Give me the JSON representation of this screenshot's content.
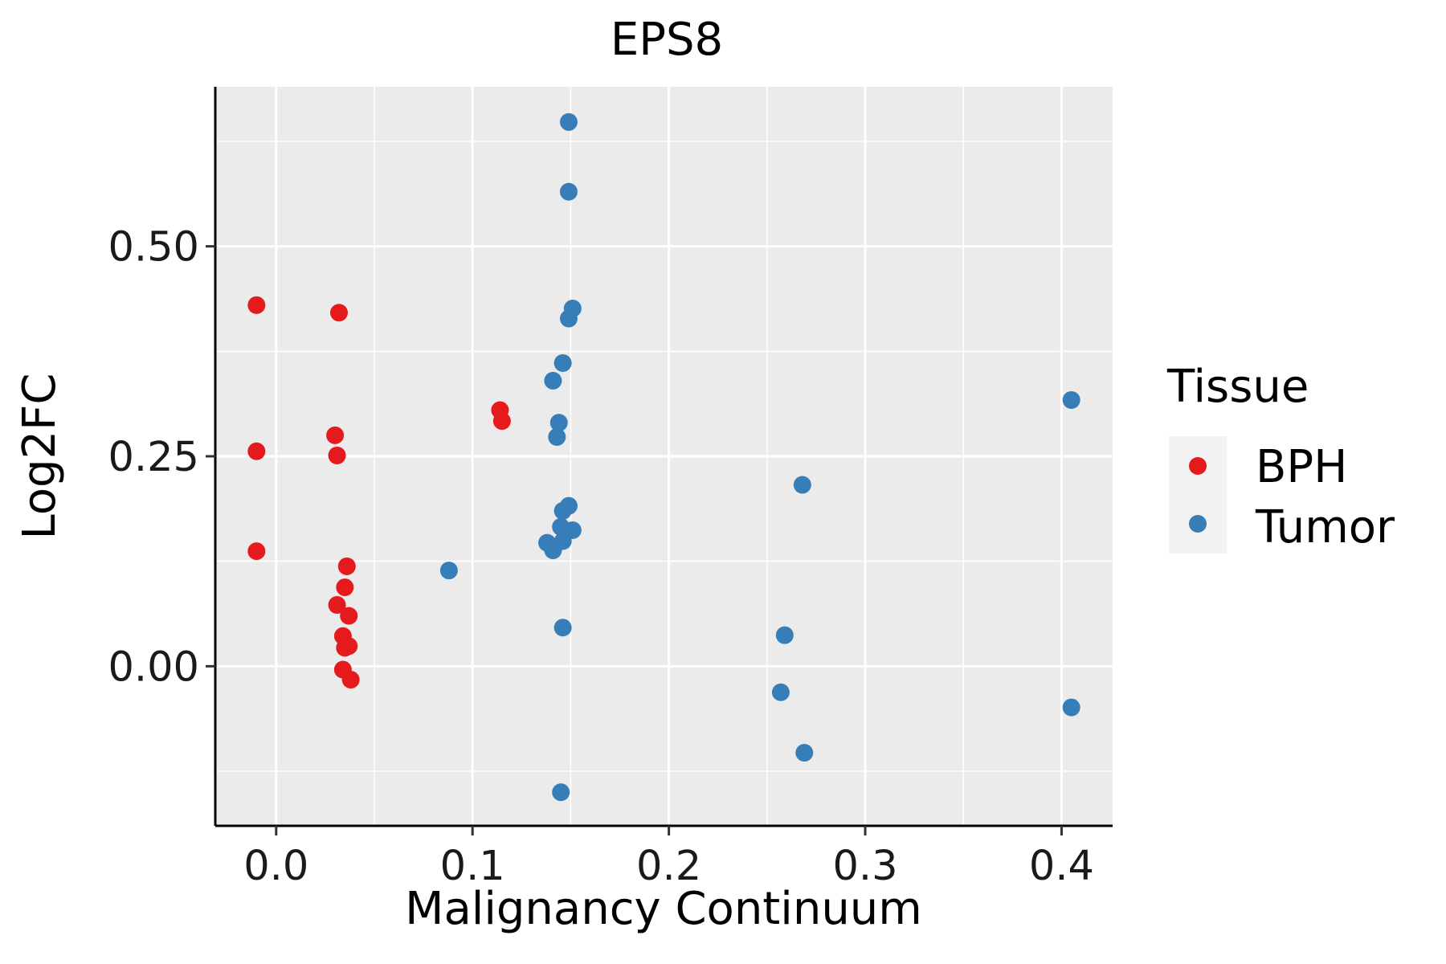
{
  "chart_data": {
    "type": "scatter",
    "title": "EPS8",
    "xlabel": "Malignancy Continuum",
    "ylabel": "Log2FC",
    "xlim": [
      -0.031,
      0.426
    ],
    "ylim": [
      -0.19,
      0.69
    ],
    "x_ticks": [
      {
        "value": 0.0,
        "label": "0.0"
      },
      {
        "value": 0.1,
        "label": "0.1"
      },
      {
        "value": 0.2,
        "label": "0.2"
      },
      {
        "value": 0.3,
        "label": "0.3"
      },
      {
        "value": 0.4,
        "label": "0.4"
      }
    ],
    "x_minor": [
      0.05,
      0.15,
      0.25,
      0.35
    ],
    "y_ticks": [
      {
        "value": 0.0,
        "label": "0.00"
      },
      {
        "value": 0.25,
        "label": "0.25"
      },
      {
        "value": 0.5,
        "label": "0.50"
      }
    ],
    "y_minor": [
      -0.125,
      0.125,
      0.375,
      0.625
    ],
    "grid": true,
    "legend": {
      "title": "Tissue",
      "position": "right"
    },
    "series": [
      {
        "name": "BPH",
        "color": "#E41A1C",
        "points": [
          [
            -0.01,
            0.43
          ],
          [
            -0.01,
            0.256
          ],
          [
            -0.01,
            0.137
          ],
          [
            0.032,
            0.421
          ],
          [
            0.03,
            0.275
          ],
          [
            0.031,
            0.251
          ],
          [
            0.036,
            0.119
          ],
          [
            0.035,
            0.094
          ],
          [
            0.031,
            0.073
          ],
          [
            0.037,
            0.06
          ],
          [
            0.034,
            0.036
          ],
          [
            0.037,
            0.024
          ],
          [
            0.035,
            0.022
          ],
          [
            0.034,
            -0.004
          ],
          [
            0.038,
            -0.016
          ],
          [
            0.114,
            0.305
          ],
          [
            0.115,
            0.292
          ]
        ]
      },
      {
        "name": "Tumor",
        "color": "#377EB8",
        "points": [
          [
            0.149,
            0.648
          ],
          [
            0.149,
            0.565
          ],
          [
            0.151,
            0.426
          ],
          [
            0.149,
            0.414
          ],
          [
            0.146,
            0.361
          ],
          [
            0.141,
            0.34
          ],
          [
            0.144,
            0.29
          ],
          [
            0.143,
            0.273
          ],
          [
            0.149,
            0.191
          ],
          [
            0.146,
            0.185
          ],
          [
            0.145,
            0.166
          ],
          [
            0.151,
            0.162
          ],
          [
            0.138,
            0.147
          ],
          [
            0.146,
            0.149
          ],
          [
            0.141,
            0.138
          ],
          [
            0.088,
            0.114
          ],
          [
            0.146,
            0.046
          ],
          [
            0.145,
            -0.15
          ],
          [
            0.268,
            0.216
          ],
          [
            0.259,
            0.037
          ],
          [
            0.257,
            -0.031
          ],
          [
            0.269,
            -0.103
          ],
          [
            0.405,
            0.317
          ],
          [
            0.405,
            -0.049
          ]
        ]
      }
    ]
  }
}
